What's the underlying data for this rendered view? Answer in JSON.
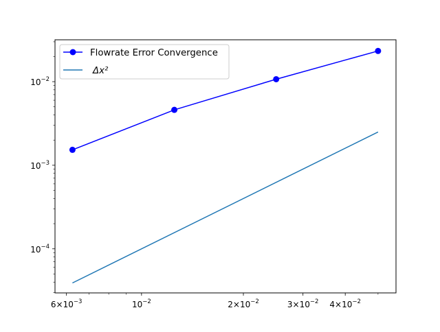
{
  "chart_data": {
    "type": "line",
    "title": "",
    "xlabel": "",
    "ylabel": "",
    "xscale": "log",
    "yscale": "log",
    "xlim": [
      0.00555,
      0.0565
    ],
    "ylim": [
      2.97e-05,
      0.0317
    ],
    "grid": false,
    "legend_position": "top-left",
    "x_ticks": [
      {
        "value": 0.006,
        "base": "6",
        "exp": "−3"
      },
      {
        "value": 0.01,
        "base": "10",
        "exp": "−2"
      },
      {
        "value": 0.02,
        "base": "2",
        "exp": "−2"
      },
      {
        "value": 0.03,
        "base": "3",
        "exp": "−2"
      },
      {
        "value": 0.04,
        "base": "4",
        "exp": "−2"
      }
    ],
    "y_ticks": [
      {
        "value": 0.0001,
        "base": "10",
        "exp": "−4"
      },
      {
        "value": 0.001,
        "base": "10",
        "exp": "−3"
      },
      {
        "value": 0.01,
        "base": "10",
        "exp": "−2"
      }
    ],
    "series": [
      {
        "name": "Flowrate Error Convergence",
        "color": "#0000ff",
        "marker": "circle",
        "x": [
          0.00625,
          0.0125,
          0.025,
          0.05
        ],
        "y": [
          0.00153,
          0.0046,
          0.0107,
          0.0233
        ]
      },
      {
        "name": "Δx²",
        "color": "#1f77b4",
        "marker": "none",
        "x": [
          0.00625,
          0.05
        ],
        "y": [
          3.90625e-05,
          0.0025
        ]
      }
    ]
  }
}
